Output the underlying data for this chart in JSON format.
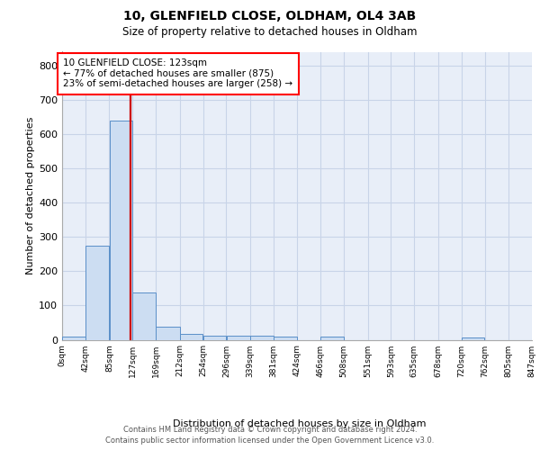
{
  "title1": "10, GLENFIELD CLOSE, OLDHAM, OL4 3AB",
  "title2": "Size of property relative to detached houses in Oldham",
  "xlabel": "Distribution of detached houses by size in Oldham",
  "ylabel": "Number of detached properties",
  "property_size": 123,
  "annotation_line1": "10 GLENFIELD CLOSE: 123sqm",
  "annotation_line2": "← 77% of detached houses are smaller (875)",
  "annotation_line3": "23% of semi-detached houses are larger (258) →",
  "bin_edges": [
    0,
    42,
    85,
    127,
    169,
    212,
    254,
    296,
    339,
    381,
    424,
    466,
    508,
    551,
    593,
    635,
    678,
    720,
    762,
    805,
    847
  ],
  "bar_heights": [
    8,
    275,
    640,
    138,
    37,
    18,
    13,
    11,
    11,
    8,
    0,
    8,
    0,
    0,
    0,
    0,
    0,
    6,
    0,
    0
  ],
  "bar_color": "#ccddf2",
  "bar_edge_color": "#5a8fc8",
  "red_line_color": "#cc0000",
  "grid_color": "#c8d4e8",
  "background_color": "#e8eef8",
  "ylim": [
    0,
    840
  ],
  "yticks": [
    0,
    100,
    200,
    300,
    400,
    500,
    600,
    700,
    800
  ],
  "footer_line1": "Contains HM Land Registry data © Crown copyright and database right 2024.",
  "footer_line2": "Contains public sector information licensed under the Open Government Licence v3.0."
}
